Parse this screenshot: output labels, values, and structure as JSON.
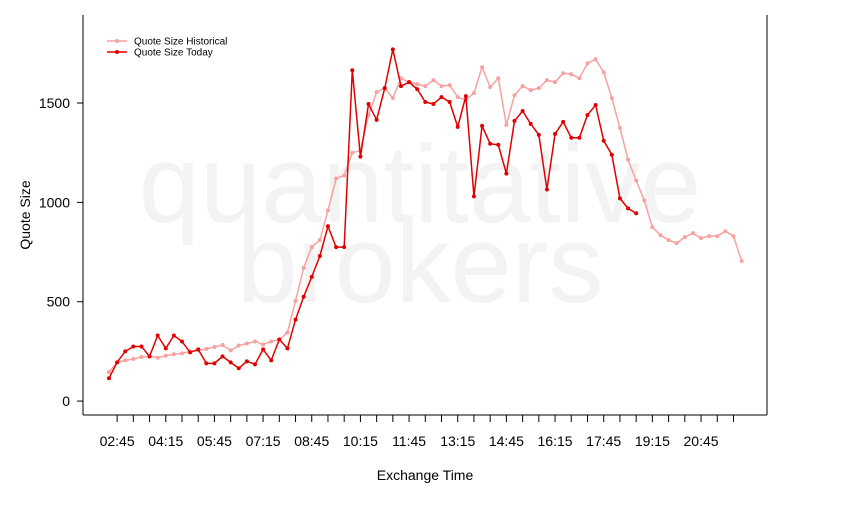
{
  "chart_data": {
    "type": "line",
    "watermark": [
      "quantitative",
      "brokers"
    ],
    "xlabel": "Exchange Time",
    "ylabel": "Quote Size",
    "categories": [
      null,
      "02:45",
      null,
      null,
      null,
      null,
      null,
      "04:15",
      null,
      null,
      null,
      null,
      null,
      "05:45",
      null,
      null,
      null,
      null,
      null,
      "07:15",
      null,
      null,
      null,
      null,
      null,
      "08:45",
      null,
      null,
      null,
      null,
      null,
      "10:15",
      null,
      null,
      null,
      null,
      null,
      "11:45",
      null,
      null,
      null,
      null,
      null,
      "13:15",
      null,
      null,
      null,
      null,
      null,
      "14:45",
      null,
      null,
      null,
      null,
      null,
      "16:15",
      null,
      null,
      null,
      null,
      null,
      "17:45",
      null,
      null,
      null,
      null,
      null,
      "19:15",
      null,
      null,
      null,
      null,
      null,
      "20:45",
      null,
      null,
      null,
      null,
      null
    ],
    "ylim": [
      -70,
      1943
    ],
    "yticks": [
      0,
      500,
      1000,
      1500
    ],
    "legend": "top-left",
    "series": [
      {
        "name": "Quote Size Historical",
        "color": "#f7a1a1",
        "values": [
          146,
          195,
          205,
          212,
          222,
          225,
          218,
          228,
          236,
          240,
          250,
          255,
          262,
          272,
          282,
          255,
          280,
          290,
          300,
          285,
          300,
          310,
          345,
          505,
          670,
          775,
          810,
          960,
          1120,
          1135,
          1250,
          1260,
          1440,
          1555,
          1575,
          1525,
          1625,
          1605,
          1595,
          1585,
          1615,
          1585,
          1590,
          1530,
          1515,
          1550,
          1680,
          1580,
          1625,
          1390,
          1540,
          1585,
          1565,
          1575,
          1615,
          1605,
          1650,
          1645,
          1625,
          1700,
          1720,
          1655,
          1525,
          1375,
          1215,
          1110,
          1010,
          875,
          835,
          810,
          795,
          825,
          845,
          820,
          830,
          830,
          855,
          830,
          705
        ]
      },
      {
        "name": "Quote Size Today",
        "color": "#e00000",
        "values": [
          115,
          195,
          250,
          275,
          275,
          225,
          330,
          265,
          330,
          300,
          245,
          260,
          190,
          190,
          225,
          195,
          165,
          200,
          185,
          260,
          205,
          310,
          265,
          410,
          525,
          625,
          730,
          880,
          775,
          775,
          1665,
          1230,
          1495,
          1415,
          1575,
          1770,
          1585,
          1605,
          1570,
          1505,
          1495,
          1530,
          1505,
          1380,
          1535,
          1030,
          1385,
          1295,
          1290,
          1145,
          1410,
          1460,
          1395,
          1340,
          1065,
          1345,
          1405,
          1325,
          1325,
          1440,
          1490,
          1310,
          1240,
          1020,
          970,
          945,
          null,
          null,
          null,
          null,
          null,
          null,
          null,
          null,
          null,
          null,
          null,
          null,
          null
        ]
      }
    ]
  }
}
